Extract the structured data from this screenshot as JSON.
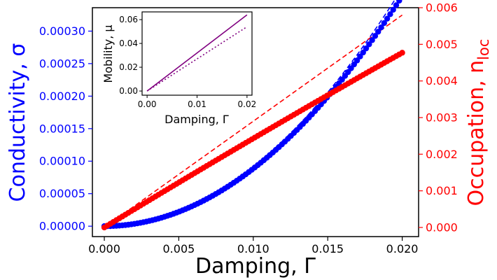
{
  "chart_data": {
    "type": "scatter",
    "xlabel": "Damping, Γ",
    "xlim": [
      -0.0008,
      0.0211
    ],
    "x_ticks": [
      "0.000",
      "0.005",
      "0.010",
      "0.015",
      "0.020"
    ],
    "left_axis": {
      "label": "Conductivity, σ",
      "color": "#0000ff",
      "ylim": [
        -1.6e-05,
        0.000336
      ],
      "ticks": [
        "0.00000",
        "0.00005",
        "0.00010",
        "0.00015",
        "0.00020",
        "0.00025",
        "0.00030"
      ]
    },
    "right_axis": {
      "label_main": "Occupation, n",
      "label_sub": "loc",
      "color": "#ff0000",
      "ylim": [
        -0.00025,
        0.006
      ],
      "ticks": [
        "0.000",
        "0.001",
        "0.002",
        "0.003",
        "0.004",
        "0.005",
        "0.006"
      ]
    },
    "series": [
      {
        "name": "Conductivity σ (numerical)",
        "axis": "left",
        "marker": "circle",
        "color": "#0000ff",
        "x_start": 0.0,
        "x_end": 0.02,
        "n_points": 100,
        "model": "sigma = 0.000354 * (Γ/0.02)^2"
      },
      {
        "name": "Occupation n_loc (numerical)",
        "axis": "right",
        "marker": "circle",
        "color": "#ff0000",
        "x_start": 0.0,
        "x_end": 0.02,
        "n_points": 100,
        "model": "n_loc = 0.00495 * Γ/0.02 - 0.00018 * (Γ/0.02)^2"
      },
      {
        "name": "Conductivity σ (asymptote)",
        "axis": "left",
        "line": "dashed",
        "color": "#0000ff",
        "x": [
          0.0,
          0.02
        ],
        "y_model": "sigma = 0.000366 * (Γ/0.02)^2"
      },
      {
        "name": "Occupation n_loc (asymptote)",
        "axis": "right",
        "line": "dashed",
        "color": "#ff0000",
        "x": [
          0.0,
          0.02
        ],
        "y": [
          0.0,
          0.0058
        ]
      }
    ],
    "inset": {
      "xlabel": "Damping, Γ",
      "ylabel": "Mobility, μ",
      "xlim": [
        -0.001,
        0.021
      ],
      "ylim": [
        -0.0035,
        0.0665
      ],
      "x_ticks": [
        "0.00",
        "0.01",
        "0.02"
      ],
      "y_ticks": [
        "0.00",
        "0.02",
        "0.04",
        "0.06"
      ],
      "series": [
        {
          "name": "Mobility μ",
          "line": "solid",
          "color": "#800080",
          "x": [
            0.0,
            0.02
          ],
          "y": [
            0.0,
            0.064
          ]
        },
        {
          "name": "Mobility μ (approx)",
          "line": "dotted",
          "color": "#800080",
          "x": [
            0.0,
            0.02
          ],
          "y": [
            0.0,
            0.054
          ]
        }
      ]
    }
  }
}
